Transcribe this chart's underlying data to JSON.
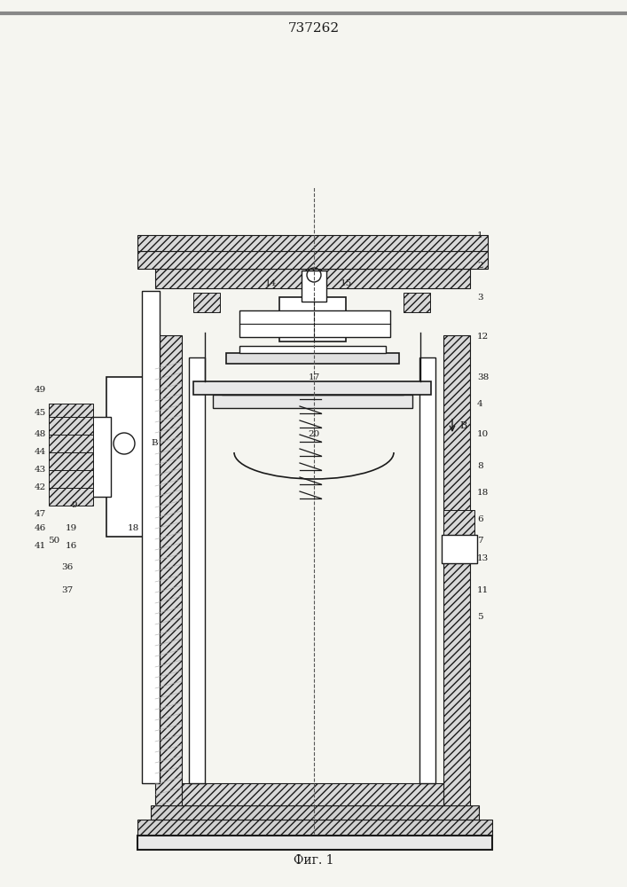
{
  "title": "737262",
  "caption": "Фиг. 1",
  "bg_color": "#f5f5f0",
  "line_color": "#1a1a1a",
  "hatch_color": "#1a1a1a",
  "figsize": [
    7.07,
    10.0
  ],
  "dpi": 100
}
